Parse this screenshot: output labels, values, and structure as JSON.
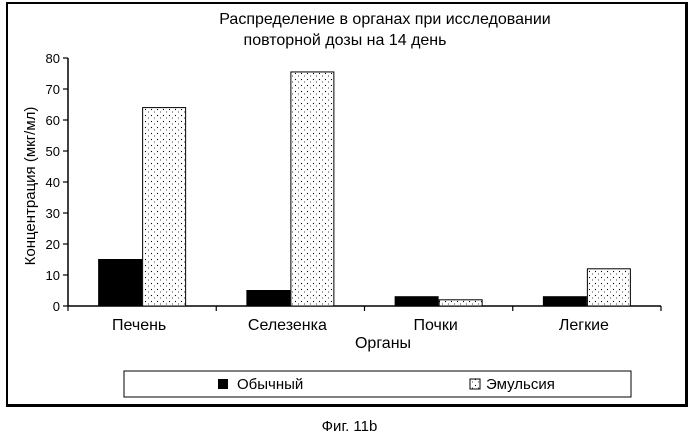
{
  "chart_data": {
    "type": "bar",
    "title_lines": [
      "Распределение в органах при исследовании",
      "повторной дозы на 14 день"
    ],
    "xlabel": "Органы",
    "ylabel": "Концентрация (мкг/мл)",
    "categories": [
      "Печень",
      "Селезенка",
      "Почки",
      "Легкие"
    ],
    "ylim": [
      0,
      80
    ],
    "yticks": [
      0,
      10,
      20,
      30,
      40,
      50,
      60,
      70,
      80
    ],
    "grid": false,
    "legend_position": "bottom",
    "series": [
      {
        "name": "Обычный",
        "values": [
          15,
          5,
          3,
          3
        ],
        "color": "#000000",
        "pattern": "solid"
      },
      {
        "name": "Эмульсия",
        "values": [
          64,
          75.5,
          2,
          12
        ],
        "color": "#ffffff",
        "pattern": "dotted"
      }
    ]
  },
  "caption": "Фиг. 11b"
}
